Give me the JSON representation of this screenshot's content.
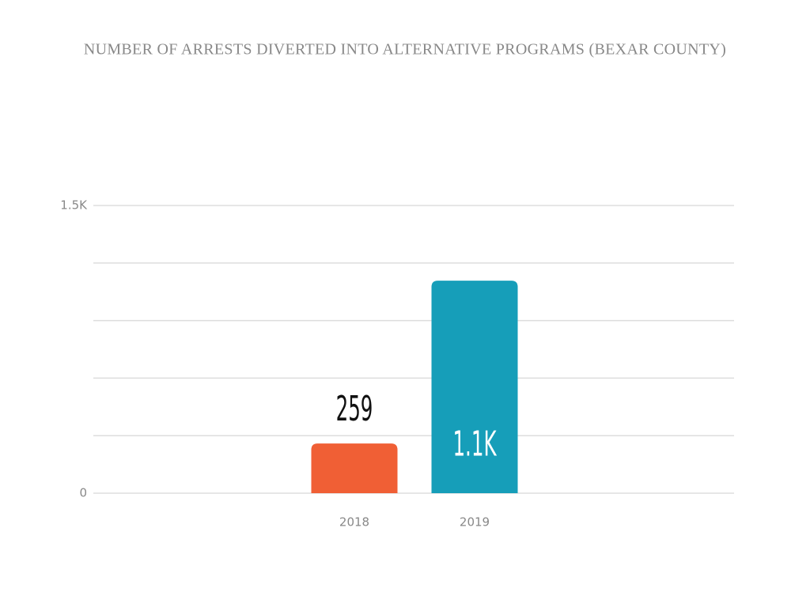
{
  "chart_data": {
    "type": "bar",
    "title": "NUMBER OF ARRESTS DIVERTED INTO ALTERNATIVE PROGRAMS (BEXAR COUNTY)",
    "categories": [
      "2018",
      "2019"
    ],
    "values": [
      259,
      1108
    ],
    "value_labels": [
      "259",
      "1.1K"
    ],
    "colors": [
      "#f05f35",
      "#169eb9"
    ],
    "ylim": [
      0,
      1500
    ],
    "yticks": [
      0,
      {
        "value": 300,
        "label": null
      },
      {
        "value": 600,
        "label": null
      },
      {
        "value": 900,
        "label": null
      },
      {
        "value": 1200,
        "label": null
      },
      {
        "value": 1500,
        "label": "1.5K"
      }
    ],
    "grid": true
  }
}
